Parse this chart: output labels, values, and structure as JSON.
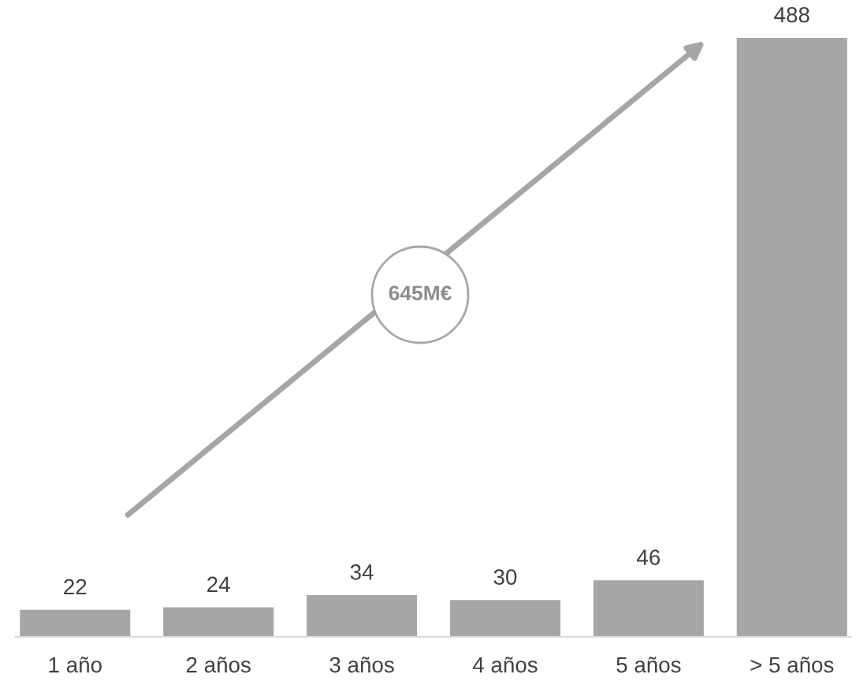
{
  "chart_data": {
    "type": "bar",
    "categories": [
      "1 año",
      "2 años",
      "3 años",
      "4 años",
      "5 años",
      "> 5 años"
    ],
    "values": [
      22,
      24,
      34,
      30,
      46,
      488
    ],
    "color": "#a6a6a6",
    "data_labels": true,
    "tick_labels": "x",
    "annotations": [
      "645M€"
    ]
  }
}
